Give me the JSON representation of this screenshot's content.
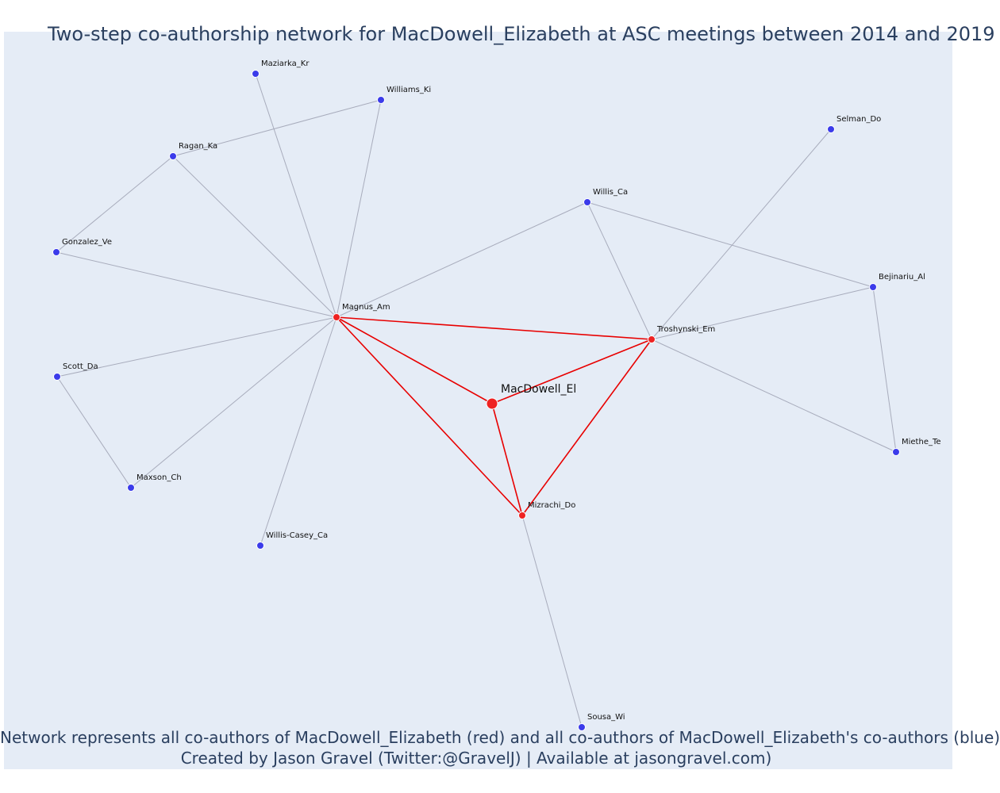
{
  "title": "Two-step co-authorship network for MacDowell_Elizabeth at ASC meetings between 2014 and 2019",
  "footer": {
    "line1": "Network represents all co-authors of MacDowell_Elizabeth (red) and all co-authors of MacDowell_Elizabeth's co-authors (blue)",
    "line2": "Created by Jason Gravel (Twitter:@GravelJ) | Available at jasongravel.com)"
  },
  "colors": {
    "background": "#e5ecf6",
    "first_step": "#ee2222",
    "second_step": "#3b3bea",
    "first_edge": "#e80000",
    "second_edge": "#a8acbc",
    "text": "#2a3f5f"
  },
  "chart_data": {
    "type": "network",
    "focal": "MacDowell_El",
    "nodes": [
      {
        "id": "MacDowell_El",
        "group": "focal"
      },
      {
        "id": "Magnus_Am",
        "group": "coauthor"
      },
      {
        "id": "Troshynski_Em",
        "group": "coauthor"
      },
      {
        "id": "Mizrachi_Do",
        "group": "coauthor"
      },
      {
        "id": "Maziarka_Kr",
        "group": "second"
      },
      {
        "id": "Williams_Ki",
        "group": "second"
      },
      {
        "id": "Ragan_Ka",
        "group": "second"
      },
      {
        "id": "Gonzalez_Ve",
        "group": "second"
      },
      {
        "id": "Scott_Da",
        "group": "second"
      },
      {
        "id": "Maxson_Ch",
        "group": "second"
      },
      {
        "id": "Willis-Casey_Ca",
        "group": "second"
      },
      {
        "id": "Willis_Ca",
        "group": "second"
      },
      {
        "id": "Selman_Do",
        "group": "second"
      },
      {
        "id": "Bejinariu_Al",
        "group": "second"
      },
      {
        "id": "Miethe_Te",
        "group": "second"
      },
      {
        "id": "Sousa_Wi",
        "group": "second"
      }
    ],
    "edges": [
      [
        "MacDowell_El",
        "Magnus_Am"
      ],
      [
        "MacDowell_El",
        "Troshynski_Em"
      ],
      [
        "MacDowell_El",
        "Mizrachi_Do"
      ],
      [
        "Magnus_Am",
        "Troshynski_Em"
      ],
      [
        "Magnus_Am",
        "Mizrachi_Do"
      ],
      [
        "Troshynski_Em",
        "Mizrachi_Do"
      ],
      [
        "Magnus_Am",
        "Maziarka_Kr"
      ],
      [
        "Magnus_Am",
        "Williams_Ki"
      ],
      [
        "Magnus_Am",
        "Ragan_Ka"
      ],
      [
        "Magnus_Am",
        "Gonzalez_Ve"
      ],
      [
        "Magnus_Am",
        "Scott_Da"
      ],
      [
        "Magnus_Am",
        "Maxson_Ch"
      ],
      [
        "Magnus_Am",
        "Willis-Casey_Ca"
      ],
      [
        "Magnus_Am",
        "Willis_Ca"
      ],
      [
        "Ragan_Ka",
        "Williams_Ki"
      ],
      [
        "Ragan_Ka",
        "Gonzalez_Ve"
      ],
      [
        "Scott_Da",
        "Maxson_Ch"
      ],
      [
        "Troshynski_Em",
        "Willis_Ca"
      ],
      [
        "Troshynski_Em",
        "Selman_Do"
      ],
      [
        "Troshynski_Em",
        "Bejinariu_Al"
      ],
      [
        "Troshynski_Em",
        "Miethe_Te"
      ],
      [
        "Willis_Ca",
        "Bejinariu_Al"
      ],
      [
        "Bejinariu_Al",
        "Miethe_Te"
      ],
      [
        "Mizrachi_Do",
        "Sousa_Wi"
      ]
    ]
  }
}
